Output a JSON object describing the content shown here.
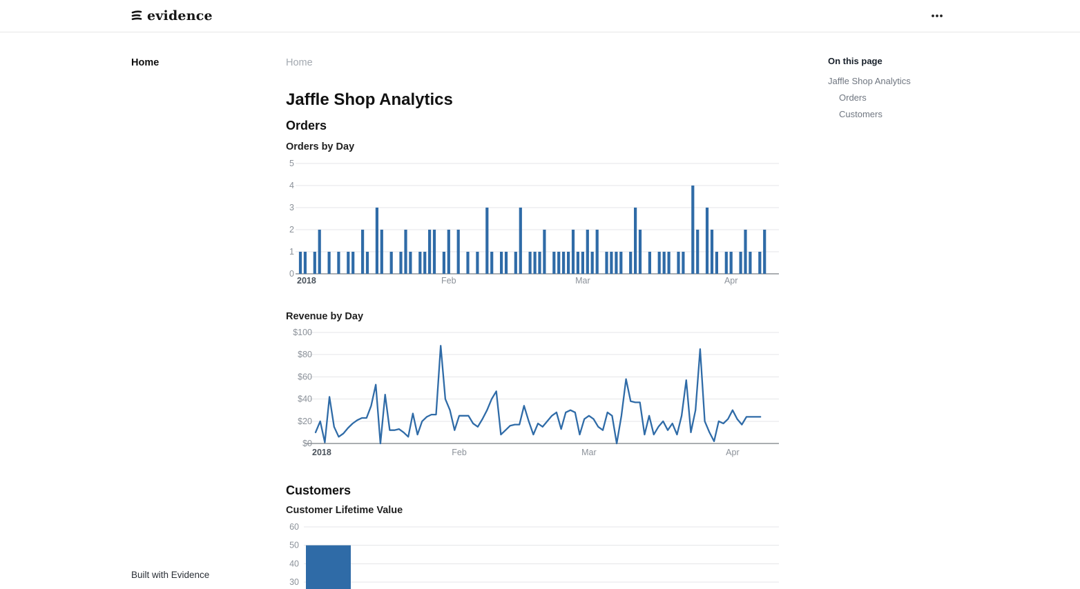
{
  "header": {
    "logo_text": "evidence",
    "menu_icon": "ellipsis-icon"
  },
  "sidebar": {
    "home_label": "Home",
    "footer_label": "Built with Evidence"
  },
  "breadcrumb": {
    "label": "Home"
  },
  "page": {
    "title": "Jaffle Shop Analytics",
    "sections": {
      "orders": "Orders",
      "customers": "Customers"
    }
  },
  "toc": {
    "title": "On this page",
    "items": [
      {
        "label": "Jaffle Shop Analytics",
        "indent": 0
      },
      {
        "label": "Orders",
        "indent": 1
      },
      {
        "label": "Customers",
        "indent": 1
      }
    ]
  },
  "colors": {
    "chart_blue": "#2f6ba7",
    "axis_gray": "#8b9199",
    "axis_dark": "#4a525b",
    "grid": "#e5e6e8",
    "baseline": "#565c63"
  },
  "chart_data": [
    {
      "type": "bar",
      "title": "Orders by Day",
      "xlabel": "",
      "ylabel": "",
      "start_date": "2018-01-01",
      "x_axis_span_days": 101,
      "ylim": [
        0,
        5
      ],
      "yticks": [
        0,
        1,
        2,
        3,
        4,
        5
      ],
      "xticks": [
        {
          "label": "2018",
          "day": 0,
          "bold": true
        },
        {
          "label": "Feb",
          "day": 31
        },
        {
          "label": "Mar",
          "day": 59
        },
        {
          "label": "Apr",
          "day": 90
        }
      ],
      "grid": true,
      "legend": false,
      "color": "#2f6ba7",
      "values": [
        1,
        1,
        0,
        1,
        2,
        0,
        1,
        0,
        1,
        0,
        1,
        1,
        0,
        2,
        1,
        0,
        3,
        2,
        0,
        1,
        0,
        1,
        2,
        1,
        0,
        1,
        1,
        2,
        2,
        0,
        1,
        2,
        0,
        2,
        0,
        1,
        0,
        1,
        0,
        3,
        1,
        0,
        1,
        1,
        0,
        1,
        3,
        0,
        1,
        1,
        1,
        2,
        0,
        1,
        1,
        1,
        1,
        2,
        1,
        1,
        2,
        1,
        2,
        0,
        1,
        1,
        1,
        1,
        0,
        1,
        3,
        2,
        0,
        1,
        0,
        1,
        1,
        1,
        0,
        1,
        1,
        0,
        4,
        2,
        0,
        3,
        2,
        1,
        0,
        1,
        1,
        0,
        1,
        2,
        1,
        0,
        1,
        2,
        0,
        0,
        0
      ]
    },
    {
      "type": "line",
      "title": "Revenue by Day",
      "xlabel": "",
      "ylabel": "",
      "start_date": "2018-01-01",
      "x_axis_span_days": 101,
      "ylim": [
        0,
        100
      ],
      "yticks": [
        0,
        20,
        40,
        60,
        80,
        100
      ],
      "ytick_prefix": "$",
      "xticks": [
        {
          "label": "2018",
          "day": 0,
          "bold": true
        },
        {
          "label": "Feb",
          "day": 31
        },
        {
          "label": "Mar",
          "day": 59
        },
        {
          "label": "Apr",
          "day": 90
        }
      ],
      "grid": true,
      "legend": false,
      "color": "#2f6ba7",
      "values": [
        10,
        20,
        1,
        42,
        15,
        6,
        9,
        14,
        18,
        21,
        23,
        23,
        34,
        53,
        0,
        44,
        12,
        12,
        13,
        10,
        6,
        27,
        8,
        20,
        24,
        26,
        26,
        88,
        40,
        30,
        12,
        25,
        25,
        25,
        18,
        15,
        22,
        30,
        40,
        47,
        8,
        12,
        16,
        17,
        17,
        34,
        20,
        8,
        18,
        15,
        20,
        25,
        28,
        13,
        28,
        30,
        28,
        8,
        22,
        25,
        22,
        15,
        12,
        28,
        25,
        0,
        25,
        58,
        38,
        37,
        37,
        8,
        25,
        8,
        15,
        20,
        12,
        18,
        8,
        25,
        57,
        10,
        30,
        85,
        20,
        10,
        2,
        20,
        18,
        22,
        30,
        22,
        17,
        24,
        24,
        24,
        24
      ]
    },
    {
      "type": "bar",
      "title": "Customer Lifetime Value",
      "xlabel": "",
      "ylabel": "",
      "yticks_visible": [
        60,
        50,
        40,
        30
      ],
      "grid": true,
      "legend": false,
      "color": "#2f6ba7",
      "values": [
        50
      ],
      "clipped_bottom": true
    }
  ]
}
